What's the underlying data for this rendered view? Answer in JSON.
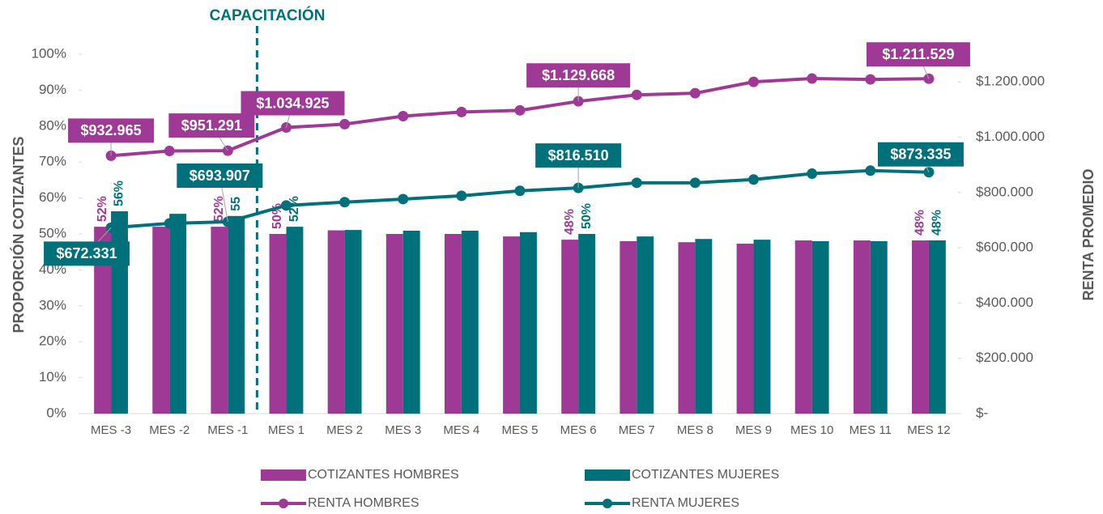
{
  "chart_data": {
    "type": "bar_line",
    "annotation": "CAPACITACIÓN",
    "y_label": "PROPORCIÓN COTIZANTES",
    "y2_label": "RENTA PROMEDIO",
    "categories": [
      "MES -3",
      "MES -2",
      "MES -1",
      "MES 1",
      "MES 2",
      "MES 3",
      "MES 4",
      "MES 5",
      "MES 6",
      "MES 7",
      "MES 8",
      "MES 9",
      "MES 10",
      "MES 11",
      "MES 12"
    ],
    "annotation_after_index": 2,
    "series": [
      {
        "name": "COTIZANTES HOMBRES",
        "type": "bar",
        "color": "#9e3a95",
        "values": [
          52,
          52,
          52,
          50,
          51,
          50,
          50,
          49.3,
          48.4,
          48,
          47.7,
          47.3,
          48.2,
          48.2,
          48.2
        ],
        "value_labels": [
          "52%",
          null,
          "52%",
          "50%",
          null,
          null,
          null,
          null,
          "48%",
          null,
          null,
          null,
          null,
          null,
          "48%"
        ]
      },
      {
        "name": "COTIZANTES MUJERES",
        "type": "bar",
        "color": "#00717a",
        "values": [
          56.3,
          55.6,
          55,
          52,
          51.1,
          50.9,
          50.9,
          50.5,
          50,
          49.3,
          48.6,
          48.4,
          48,
          48,
          48.2
        ],
        "value_labels": [
          "56%",
          null,
          "55",
          "52%",
          null,
          null,
          null,
          null,
          "50%",
          null,
          null,
          null,
          null,
          null,
          "48%"
        ]
      },
      {
        "name": "RENTA HOMBRES",
        "type": "line",
        "axis": "y2",
        "color": "#9e3a95",
        "values": [
          932965,
          950000,
          951291,
          1034925,
          1047000,
          1076000,
          1091000,
          1097000,
          1129668,
          1153000,
          1159000,
          1200000,
          1212000,
          1209000,
          1211529
        ],
        "value_labels": [
          "$932.965",
          null,
          "$951.291",
          "$1.034.925",
          null,
          null,
          null,
          null,
          "$1.129.668",
          null,
          null,
          null,
          null,
          null,
          "$1.211.529"
        ]
      },
      {
        "name": "RENTA MUJERES",
        "type": "line",
        "axis": "y2",
        "color": "#00717a",
        "values": [
          672331,
          688000,
          693907,
          753000,
          765000,
          776000,
          788000,
          806000,
          816510,
          835000,
          835000,
          847000,
          868000,
          879000,
          873335
        ],
        "value_labels": [
          "$672.331",
          null,
          "$693.907",
          null,
          null,
          null,
          null,
          null,
          "$816.510",
          null,
          null,
          null,
          null,
          null,
          "$873.335"
        ]
      }
    ],
    "ylim": [
      0,
      100
    ],
    "yticks": [
      {
        "value": 0,
        "label": "0%"
      },
      {
        "value": 10,
        "label": "10%"
      },
      {
        "value": 20,
        "label": "20%"
      },
      {
        "value": 30,
        "label": "30%"
      },
      {
        "value": 40,
        "label": "40%"
      },
      {
        "value": 50,
        "label": "50%"
      },
      {
        "value": 60,
        "label": "60%"
      },
      {
        "value": 70,
        "label": "70%"
      },
      {
        "value": 80,
        "label": "80%"
      },
      {
        "value": 90,
        "label": "90%"
      },
      {
        "value": 100,
        "label": "100%"
      }
    ],
    "y2lim": [
      0,
      1300000
    ],
    "y2ticks": [
      {
        "value": 0,
        "label": "$-"
      },
      {
        "value": 200000,
        "label": "$200.000"
      },
      {
        "value": 400000,
        "label": "$400.000"
      },
      {
        "value": 600000,
        "label": "$600.000"
      },
      {
        "value": 800000,
        "label": "$800.000"
      },
      {
        "value": 1000000,
        "label": "$1.000.000"
      },
      {
        "value": 1200000,
        "label": "$1.200.000"
      }
    ],
    "legend": "bottom",
    "grid": false
  }
}
